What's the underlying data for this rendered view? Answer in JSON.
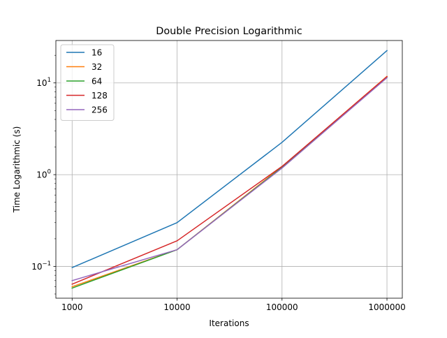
{
  "chart_data": {
    "type": "line",
    "title": "Double Precision Logarithmic",
    "xlabel": "Iterations",
    "ylabel": "Time Logarithmic (s)",
    "x_scale": "log",
    "y_scale": "log",
    "x": [
      1000,
      10000,
      100000,
      1000000
    ],
    "x_tick_labels": [
      "1000",
      "10000",
      "100000",
      "1000000"
    ],
    "y_ticks": [
      0.1,
      1,
      10
    ],
    "xlim": [
      700,
      1400000
    ],
    "ylim": [
      0.045,
      29
    ],
    "grid": true,
    "legend_position": "top-left",
    "series": [
      {
        "name": "16",
        "color": "#1f77b4",
        "values": [
          0.097,
          0.3,
          2.25,
          22.5
        ]
      },
      {
        "name": "32",
        "color": "#ff7f0e",
        "values": [
          0.06,
          0.152,
          1.22,
          11.8
        ]
      },
      {
        "name": "64",
        "color": "#2ca02c",
        "values": [
          0.058,
          0.152,
          1.2,
          11.5
        ]
      },
      {
        "name": "128",
        "color": "#d62728",
        "values": [
          0.064,
          0.19,
          1.23,
          11.7
        ]
      },
      {
        "name": "256",
        "color": "#9467bd",
        "values": [
          0.07,
          0.152,
          1.18,
          11.4
        ]
      }
    ]
  }
}
